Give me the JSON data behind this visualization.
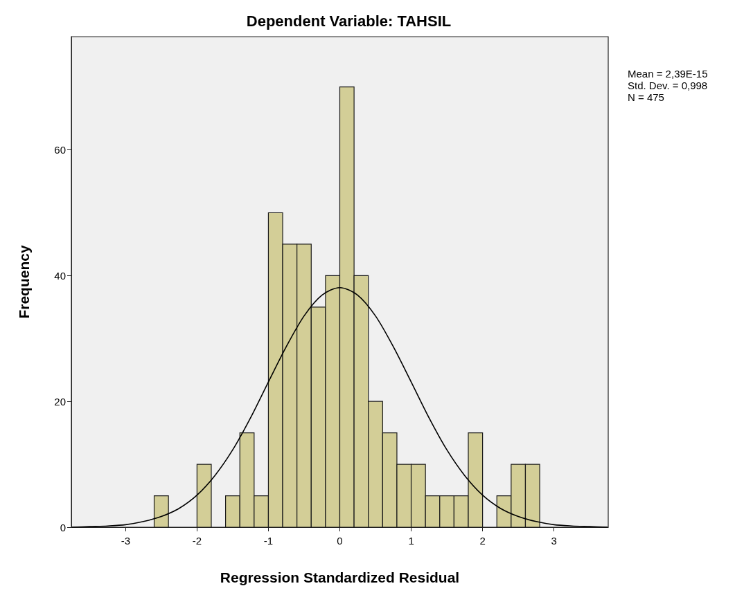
{
  "chart_data": {
    "type": "histogram",
    "title": "Dependent Variable: TAHSIL",
    "xlabel": "Regression Standardized Residual",
    "ylabel": "Frequency",
    "bins": [
      -2.6,
      -2.4,
      -2.2,
      -2.0,
      -1.8,
      -1.6,
      -1.4,
      -1.2,
      -1.0,
      -0.8,
      -0.6,
      -0.4,
      -0.2,
      0,
      0.2,
      0.4,
      0.6,
      0.8,
      1.0,
      1.2,
      1.4,
      1.6,
      1.8,
      2.0,
      2.2,
      2.4,
      2.6,
      2.8
    ],
    "values": [
      5,
      0,
      0,
      10,
      0,
      5,
      15,
      5,
      50,
      45,
      45,
      35,
      40,
      70,
      40,
      20,
      15,
      10,
      10,
      5,
      5,
      5,
      15,
      0,
      5,
      10,
      10
    ],
    "color": "#d3ce97",
    "series": [
      {
        "type": "line",
        "color": "#000000",
        "x": [
          -3.75,
          -3.5,
          -3.25,
          -3,
          -2.75,
          -2.5,
          -2.25,
          -2,
          -1.75,
          -1.5,
          -1.25,
          -1,
          -0.75,
          -0.5,
          -0.25,
          0,
          0.25,
          0.5,
          0.75,
          1,
          1.25,
          1.5,
          1.75,
          2,
          2.25,
          2.5,
          2.75,
          3,
          3.25,
          3.5,
          3.75
        ],
        "values": [
          0,
          0.1,
          0.2,
          0.4,
          0.9,
          1.7,
          3,
          5.1,
          8.2,
          12.3,
          17.4,
          23.1,
          28.7,
          33.6,
          36.9,
          38.1,
          36.9,
          33.6,
          28.7,
          23.1,
          17.4,
          12.3,
          8.2,
          5.1,
          3,
          1.7,
          0.9,
          0.4,
          0.2,
          0.1,
          0
        ]
      }
    ],
    "xlim": [
      -3.76,
      3.76
    ],
    "xticks": [
      -3,
      -2,
      -1,
      0,
      1,
      2,
      3
    ],
    "ylim": [
      0,
      78
    ],
    "yticks": [
      0,
      20,
      40,
      60
    ],
    "annotations": [
      "Mean = 2,39E-15",
      "Std. Dev. = 0,998",
      "N = 475"
    ]
  }
}
